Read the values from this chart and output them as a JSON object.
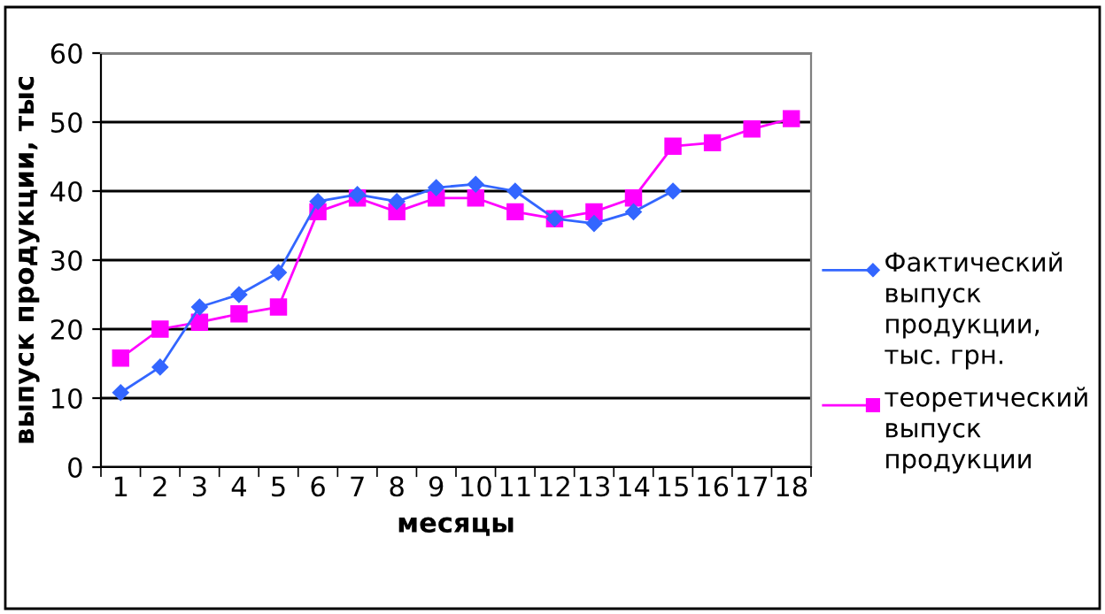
{
  "chart_data": {
    "type": "line",
    "xlabel": "месяцы",
    "ylabel": "выпуск продукции, тыс",
    "categories": [
      "1",
      "2",
      "3",
      "4",
      "5",
      "6",
      "7",
      "8",
      "9",
      "10",
      "11",
      "12",
      "13",
      "14",
      "15",
      "16",
      "17",
      "18"
    ],
    "series": [
      {
        "name": "Фактический выпуск продукции, тыс. грн.",
        "color": "#3366ff",
        "marker": "diamond",
        "values": [
          10.8,
          14.5,
          23.2,
          25,
          28.2,
          38.5,
          39.5,
          38.5,
          40.5,
          41,
          40,
          36,
          35.3,
          37,
          40,
          null,
          null,
          null
        ]
      },
      {
        "name": "теоретический выпуск продукции",
        "color": "#ff00ff",
        "marker": "square",
        "values": [
          15.8,
          20,
          21,
          22.2,
          23.2,
          37,
          39,
          37,
          39,
          39,
          37,
          36,
          37,
          39,
          46.5,
          47,
          49,
          50.5
        ]
      }
    ],
    "ylim": [
      0,
      60
    ],
    "yticks": [
      0,
      10,
      20,
      30,
      40,
      50,
      60
    ],
    "grid": "y",
    "legend": "right"
  }
}
